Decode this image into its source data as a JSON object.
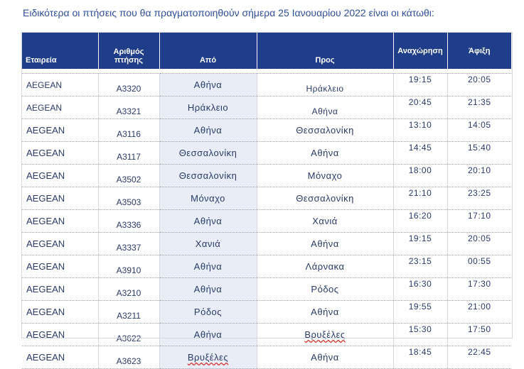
{
  "intro_text": "Ειδικότερα οι πτήσεις που θα πραγματοποιηθούν σήμερα 25 Ιανουαρίου 2022 είναι οι κάτωθι:",
  "table": {
    "headers": {
      "airline": "Εταιρεία",
      "flight_line1": "Αριθμός",
      "flight_line2": "πτήσης",
      "from": "Από",
      "to": "Προς",
      "departure": "Αναχώρηση",
      "arrival": "Άφιξη"
    },
    "rows": [
      {
        "airline": "AEGEAN",
        "flight": "A3320",
        "from": "Αθήνα",
        "to": "Ηράκλειο",
        "dep": "19:15",
        "arr": "20:05",
        "big": false
      },
      {
        "airline": "AEGEAN",
        "flight": "A3321",
        "from": "Ηράκλειο",
        "to": "Αθήνα",
        "dep": "20:45",
        "arr": "21:35",
        "big": false
      },
      {
        "airline": "AEGEAN",
        "flight": "A3116",
        "from": "Αθήνα",
        "to": "Θεσσαλονίκη",
        "dep": "13:10",
        "arr": "14:05",
        "big": true
      },
      {
        "airline": "AEGEAN",
        "flight": "A3117",
        "from": "Θεσσαλονίκη",
        "to": "Αθήνα",
        "dep": "14:45",
        "arr": "15:40",
        "big": true
      },
      {
        "airline": "AEGEAN",
        "flight": "A3502",
        "from": "Θεσσαλονίκη",
        "to": "Μόναχο",
        "dep": "18:00",
        "arr": "20:10",
        "big": true
      },
      {
        "airline": "AEGEAN",
        "flight": "A3503",
        "from": "Μόναχο",
        "to": "Θεσσαλονίκη",
        "dep": "21:10",
        "arr": "23:25",
        "big": true
      },
      {
        "airline": "AEGEAN",
        "flight": "A3336",
        "from": "Αθήνα",
        "to": "Χανιά",
        "dep": "16:20",
        "arr": "17:10",
        "big": true
      },
      {
        "airline": "AEGEAN",
        "flight": "A3337",
        "from": "Χανιά",
        "to": "Αθήνα",
        "dep": "19:15",
        "arr": "20:05",
        "big": true
      },
      {
        "airline": "AEGEAN",
        "flight": "A3910",
        "from": "Αθήνα",
        "to": "Λάρνακα",
        "dep": "23:15",
        "arr": "00:55",
        "big": true
      },
      {
        "airline": "AEGEAN",
        "flight": "A3210",
        "from": "Αθήνα",
        "to": "Ρόδος",
        "dep": "16:30",
        "arr": "17:30",
        "big": true
      },
      {
        "airline": "AEGEAN",
        "flight": "A3211",
        "from": "Ρόδος",
        "to": "Αθήνα",
        "dep": "19:55",
        "arr": "21:00",
        "big": true
      },
      {
        "airline": "AEGEAN",
        "flight": "A3622",
        "from": "Αθήνα",
        "to": "Βρυξέλες",
        "dep": "15:30",
        "arr": "17:50",
        "big": true
      },
      {
        "airline": "AEGEAN",
        "flight": "A3623",
        "from": "Βρυξέλες",
        "to": "Αθήνα",
        "dep": "18:45",
        "arr": "22:45",
        "big": true
      }
    ]
  },
  "colors": {
    "header_bg": "#1f3d88",
    "intro_text": "#2f4f9a",
    "from_column_bg": "#e8edf8",
    "spellcheck_underline": "#d9342b"
  }
}
